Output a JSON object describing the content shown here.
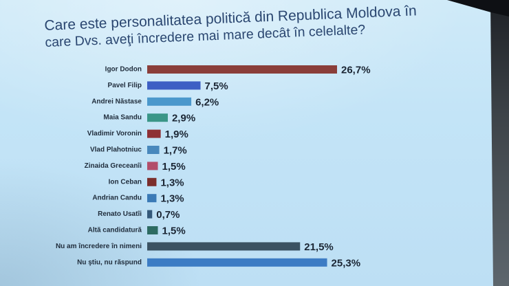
{
  "chart_data": {
    "type": "bar",
    "orientation": "horizontal",
    "title_lines": [
      "Care este personalitatea politică din Republica Moldova în",
      "care Dvs. aveţi încredere mai mare decât în celelalte?"
    ],
    "grid": false,
    "categories": [
      "Igor Dodon",
      "Pavel Filip",
      "Andrei Năstase",
      "Maia Sandu",
      "Vladimir Voronin",
      "Vlad Plahotniuc",
      "Zinaida Greceanîi",
      "Ion Ceban",
      "Andrian Candu",
      "Renato Usatîi",
      "Altă candidatură",
      "Nu am încredere în nimeni",
      "Nu ştiu, nu răspund"
    ],
    "values": [
      26.7,
      7.5,
      6.2,
      2.9,
      1.9,
      1.7,
      1.5,
      1.3,
      1.3,
      0.7,
      1.5,
      21.5,
      25.3
    ],
    "data_labels": [
      "26,7%",
      "7,5%",
      "6,2%",
      "2,9%",
      "1,9%",
      "1,7%",
      "1,5%",
      "1,3%",
      "1,3%",
      "0,7%",
      "1,5%",
      "21,5%",
      "25,3%"
    ],
    "colors": [
      "#8a3e3a",
      "#3d5fc4",
      "#4b98cc",
      "#3a9688",
      "#8e3035",
      "#4888bc",
      "#b24e6a",
      "#7b2e2c",
      "#3a7ab6",
      "#34597a",
      "#2d6b62",
      "#3b5262",
      "#3c7cc4"
    ]
  },
  "colors": {
    "screen_background": "#c4e4f7",
    "title_text": "#2a4670",
    "label_text": "#1f2c3b"
  }
}
